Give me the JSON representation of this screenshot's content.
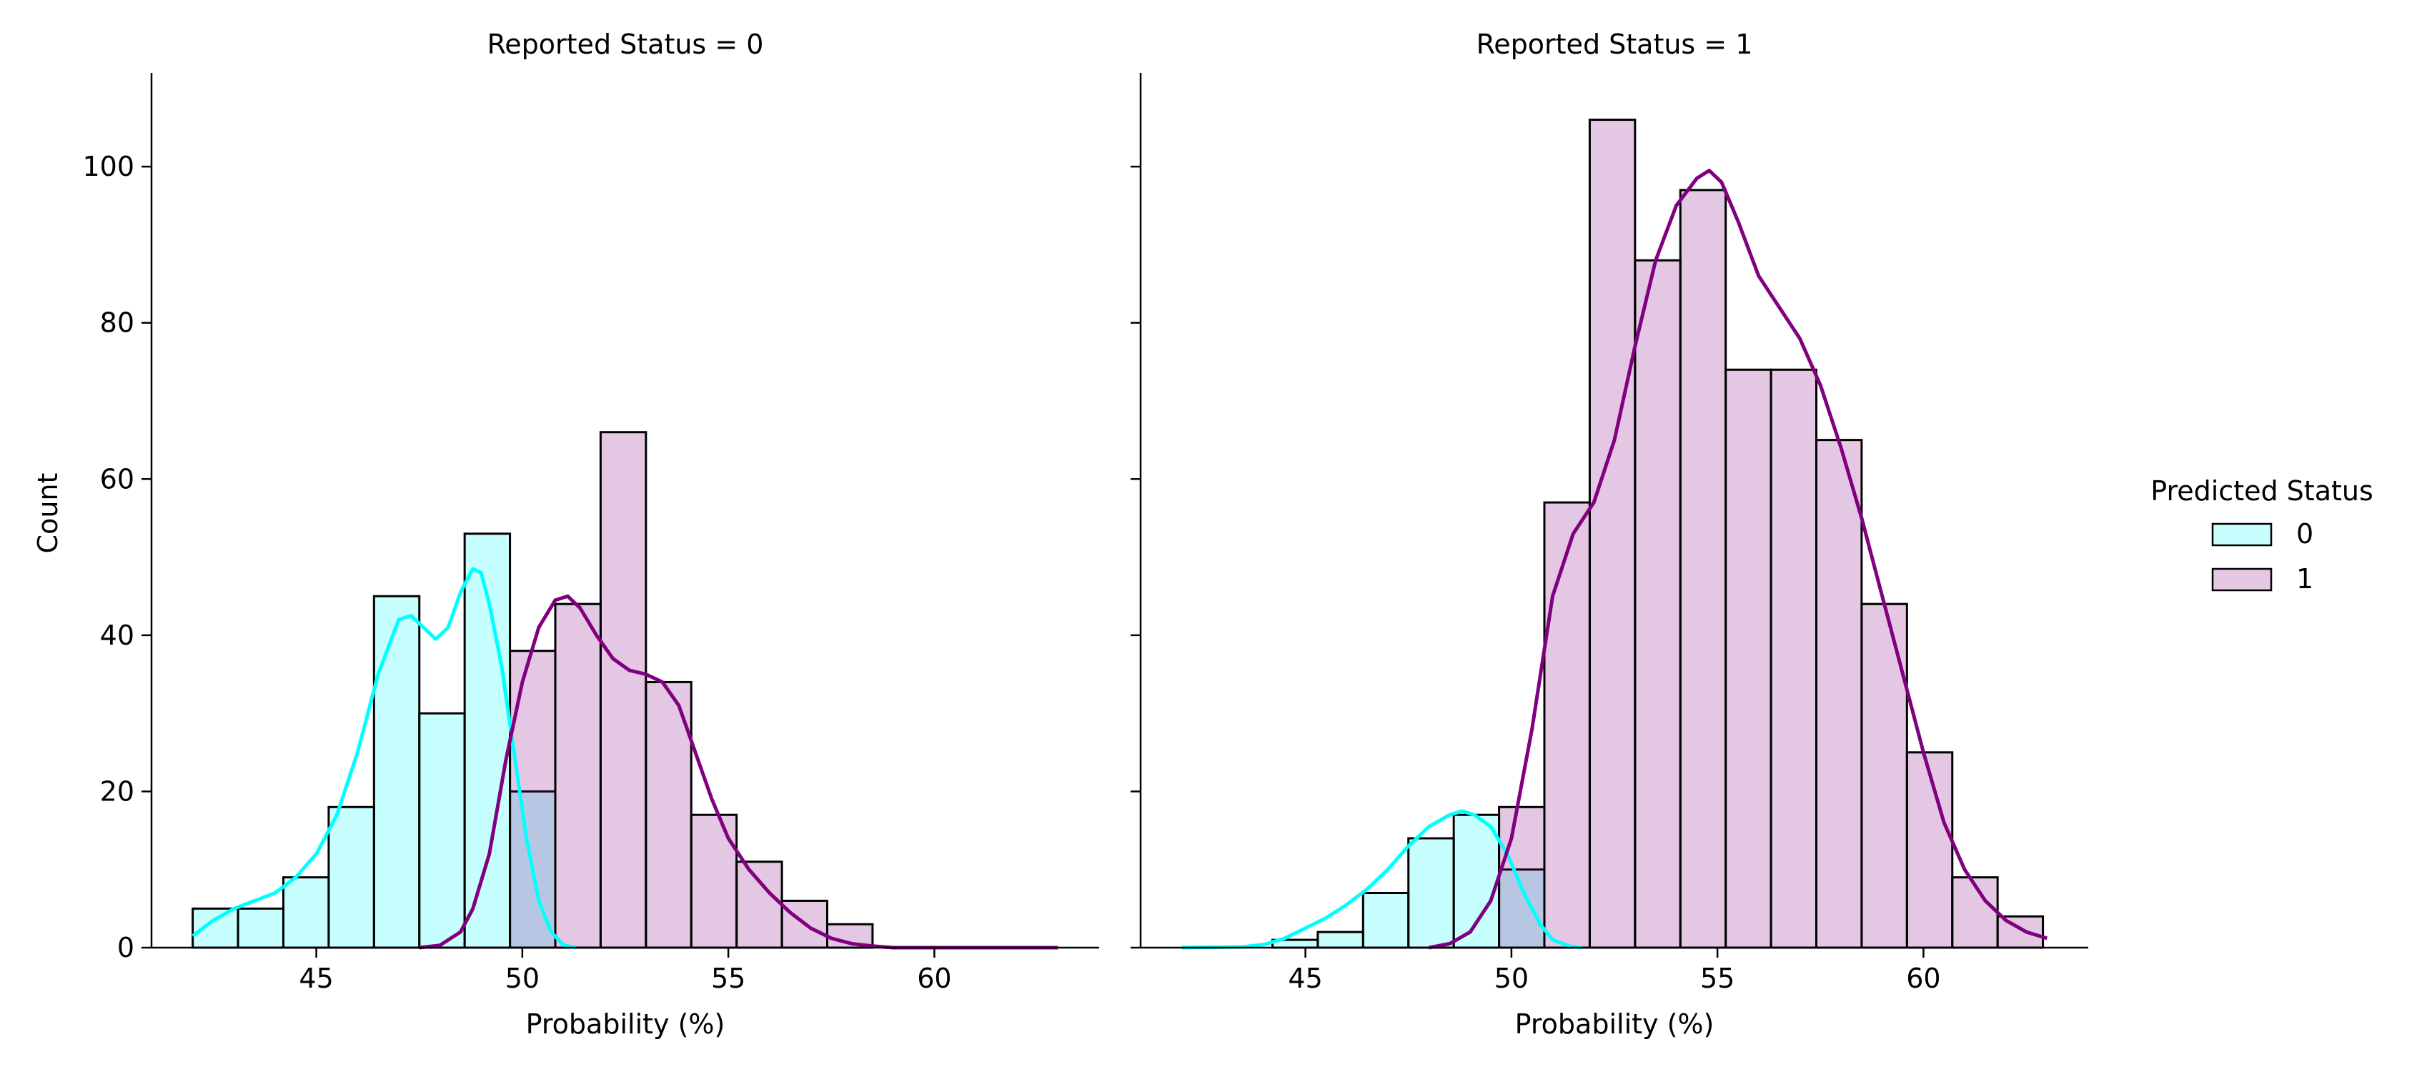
{
  "chart_data": [
    {
      "type": "histogram",
      "title": "Reported Status = 0",
      "xlabel": "Probability (%)",
      "ylabel": "Count",
      "xlim": [
        41.0,
        64.0
      ],
      "ylim": [
        0,
        112
      ],
      "xticks": [
        45,
        50,
        55,
        60
      ],
      "yticks": [
        0,
        20,
        40,
        60,
        80,
        100
      ],
      "grid": false,
      "series": [
        {
          "name": "0",
          "color": "#00ffff",
          "bin_edges": [
            42.0,
            43.1,
            44.2,
            45.3,
            46.4,
            47.5,
            48.6,
            49.7,
            50.8
          ],
          "values": [
            5,
            5,
            9,
            18,
            45,
            30,
            53,
            20
          ],
          "kde": [
            [
              42.0,
              1.5
            ],
            [
              42.5,
              3.5
            ],
            [
              43.0,
              5.0
            ],
            [
              43.5,
              6.0
            ],
            [
              44.0,
              7.0
            ],
            [
              44.5,
              9.0
            ],
            [
              45.0,
              12.0
            ],
            [
              45.5,
              17.0
            ],
            [
              46.0,
              25.0
            ],
            [
              46.5,
              35.0
            ],
            [
              47.0,
              42.0
            ],
            [
              47.3,
              42.5
            ],
            [
              47.6,
              41.0
            ],
            [
              47.9,
              39.5
            ],
            [
              48.2,
              41.0
            ],
            [
              48.5,
              45.5
            ],
            [
              48.8,
              48.5
            ],
            [
              49.0,
              48.0
            ],
            [
              49.2,
              44.0
            ],
            [
              49.5,
              36.0
            ],
            [
              49.8,
              25.0
            ],
            [
              50.1,
              14.0
            ],
            [
              50.4,
              6.0
            ],
            [
              50.7,
              2.0
            ],
            [
              51.0,
              0.3
            ],
            [
              51.3,
              0.0
            ]
          ]
        },
        {
          "name": "1",
          "color": "#800080",
          "bin_edges": [
            49.7,
            50.8,
            51.9,
            53.0,
            54.1,
            55.2,
            56.3,
            57.4,
            58.5
          ],
          "values": [
            38,
            44,
            66,
            34,
            17,
            11,
            6,
            3
          ],
          "kde": [
            [
              47.5,
              0.0
            ],
            [
              48.0,
              0.3
            ],
            [
              48.5,
              2.0
            ],
            [
              48.8,
              5.0
            ],
            [
              49.2,
              12.0
            ],
            [
              49.6,
              24.0
            ],
            [
              50.0,
              34.0
            ],
            [
              50.4,
              41.0
            ],
            [
              50.8,
              44.5
            ],
            [
              51.1,
              45.0
            ],
            [
              51.4,
              43.5
            ],
            [
              51.8,
              40.0
            ],
            [
              52.2,
              37.0
            ],
            [
              52.6,
              35.5
            ],
            [
              53.0,
              35.0
            ],
            [
              53.4,
              34.0
            ],
            [
              53.8,
              31.0
            ],
            [
              54.2,
              25.0
            ],
            [
              54.6,
              19.0
            ],
            [
              55.0,
              14.0
            ],
            [
              55.5,
              10.0
            ],
            [
              56.0,
              7.0
            ],
            [
              56.5,
              4.5
            ],
            [
              57.0,
              2.5
            ],
            [
              57.5,
              1.2
            ],
            [
              58.0,
              0.5
            ],
            [
              58.5,
              0.2
            ],
            [
              59.0,
              0.0
            ],
            [
              61.0,
              0.0
            ],
            [
              63.0,
              0.0
            ]
          ]
        }
      ]
    },
    {
      "type": "histogram",
      "title": "Reported Status = 1",
      "xlabel": "Probability (%)",
      "ylabel": "",
      "xlim": [
        41.0,
        64.0
      ],
      "ylim": [
        0,
        112
      ],
      "xticks": [
        45,
        50,
        55,
        60
      ],
      "yticks": [
        0,
        20,
        40,
        60,
        80,
        100
      ],
      "grid": false,
      "series": [
        {
          "name": "0",
          "color": "#00ffff",
          "bin_edges": [
            44.2,
            45.3,
            46.4,
            47.5,
            48.6,
            49.7,
            50.8
          ],
          "values": [
            1,
            2,
            7,
            14,
            17,
            10
          ],
          "kde": [
            [
              42.0,
              0.0
            ],
            [
              43.5,
              0.1
            ],
            [
              44.0,
              0.4
            ],
            [
              44.5,
              1.2
            ],
            [
              45.0,
              2.5
            ],
            [
              45.5,
              3.8
            ],
            [
              46.0,
              5.5
            ],
            [
              46.5,
              7.5
            ],
            [
              47.0,
              10.0
            ],
            [
              47.5,
              13.0
            ],
            [
              48.0,
              15.5
            ],
            [
              48.5,
              17.0
            ],
            [
              48.8,
              17.5
            ],
            [
              49.1,
              17.0
            ],
            [
              49.5,
              15.5
            ],
            [
              49.9,
              12.0
            ],
            [
              50.3,
              7.0
            ],
            [
              50.7,
              3.0
            ],
            [
              51.0,
              1.0
            ],
            [
              51.4,
              0.2
            ],
            [
              51.7,
              0.0
            ]
          ]
        },
        {
          "name": "1",
          "color": "#800080",
          "bin_edges": [
            49.7,
            50.8,
            51.9,
            53.0,
            54.1,
            55.2,
            56.3,
            57.4,
            58.5,
            59.6,
            60.7,
            61.8,
            62.9
          ],
          "values": [
            18,
            57,
            106,
            88,
            97,
            74,
            74,
            65,
            44,
            25,
            9,
            4
          ],
          "kde": [
            [
              48.0,
              0.0
            ],
            [
              48.5,
              0.5
            ],
            [
              49.0,
              2.0
            ],
            [
              49.5,
              6.0
            ],
            [
              50.0,
              14.0
            ],
            [
              50.5,
              28.0
            ],
            [
              51.0,
              45.0
            ],
            [
              51.5,
              53.0
            ],
            [
              52.0,
              57.0
            ],
            [
              52.5,
              65.0
            ],
            [
              53.0,
              77.0
            ],
            [
              53.5,
              88.0
            ],
            [
              54.0,
              95.0
            ],
            [
              54.5,
              98.5
            ],
            [
              54.8,
              99.5
            ],
            [
              55.1,
              98.0
            ],
            [
              55.5,
              93.0
            ],
            [
              56.0,
              86.0
            ],
            [
              56.5,
              82.0
            ],
            [
              57.0,
              78.0
            ],
            [
              57.5,
              72.0
            ],
            [
              58.0,
              64.0
            ],
            [
              58.5,
              55.0
            ],
            [
              59.0,
              45.0
            ],
            [
              59.5,
              35.0
            ],
            [
              60.0,
              25.0
            ],
            [
              60.5,
              16.0
            ],
            [
              61.0,
              10.0
            ],
            [
              61.5,
              6.0
            ],
            [
              62.0,
              3.5
            ],
            [
              62.5,
              2.0
            ],
            [
              63.0,
              1.2
            ]
          ]
        }
      ]
    }
  ],
  "legend": {
    "title": "Predicted Status",
    "placement": "right",
    "items": [
      {
        "label": "0",
        "color": "#00ffff"
      },
      {
        "label": "1",
        "color": "#800080"
      }
    ]
  }
}
